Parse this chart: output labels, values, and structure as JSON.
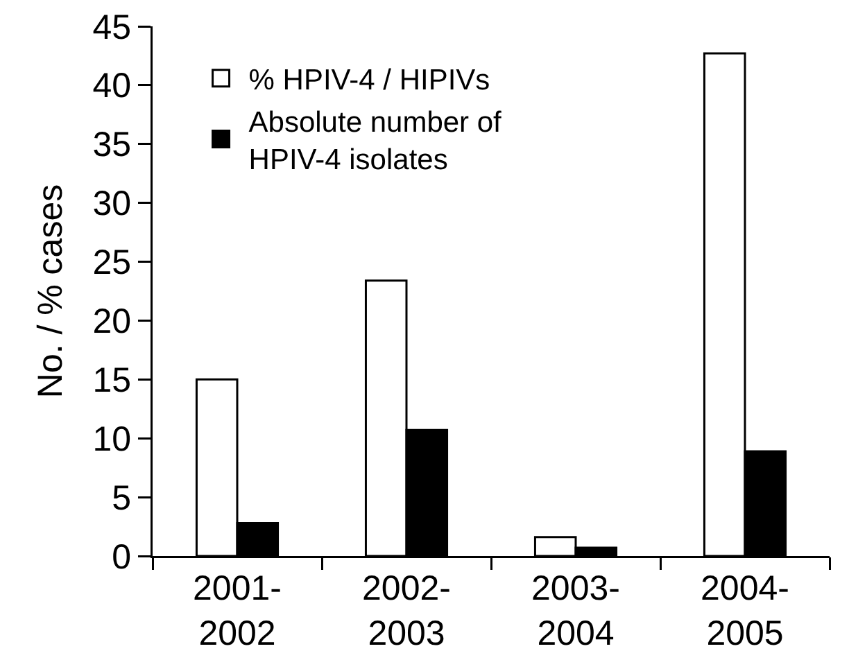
{
  "chart_data": {
    "type": "bar",
    "categories": [
      "2001-\n2002",
      "2002-\n2003",
      "2003-\n2004",
      "2004-\n2005"
    ],
    "series": [
      {
        "name": "% HPIV-4 / HIPIVs",
        "color": "#ffffff",
        "values": [
          15,
          23.4,
          1.6,
          42.7
        ]
      },
      {
        "name": "Absolute number of\nHPIV-4 isolates",
        "color": "#000000",
        "values": [
          2.8,
          10.7,
          0.7,
          8.9
        ]
      }
    ],
    "ylabel": "No. / % cases",
    "ylim": [
      0,
      45
    ],
    "yticks": [
      0,
      5,
      10,
      15,
      20,
      25,
      30,
      35,
      40,
      45
    ],
    "grid": false,
    "legend": "top left"
  }
}
